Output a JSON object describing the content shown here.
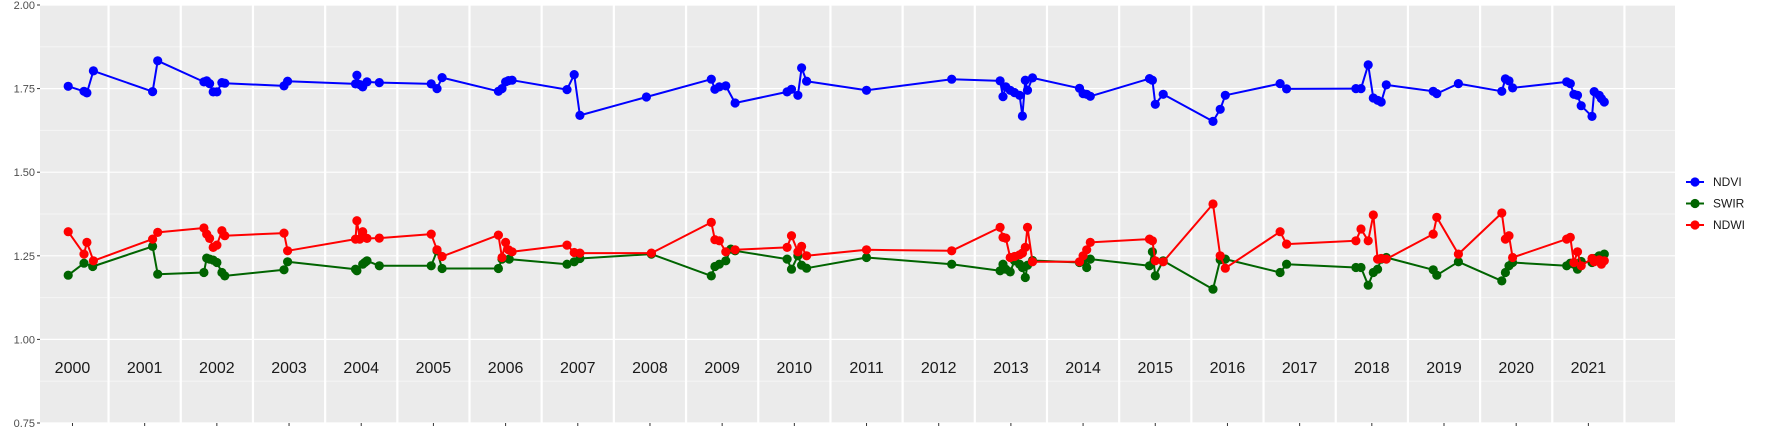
{
  "chart_data": {
    "type": "line",
    "title": "",
    "xlabel": "",
    "ylabel": "",
    "ylim": [
      0.75,
      2.0
    ],
    "yticks": [
      "0.75",
      "1.00",
      "1.25",
      "1.50",
      "1.75",
      "2.00"
    ],
    "ytick_values": [
      0.75,
      1.0,
      1.25,
      1.5,
      1.75,
      2.0
    ],
    "xlim": [
      1999.55,
      2022.2
    ],
    "years": [
      "2000",
      "2001",
      "2002",
      "2003",
      "2004",
      "2005",
      "2006",
      "2007",
      "2008",
      "2009",
      "2010",
      "2011",
      "2012",
      "2013",
      "2014",
      "2015",
      "2016",
      "2017",
      "2018",
      "2019",
      "2020",
      "2021"
    ],
    "grid": true,
    "legend_position": "right",
    "series": [
      {
        "name": "NDVI",
        "color": "#0000ff",
        "x": [
          1999.94,
          2000.16,
          2000.2,
          2000.29,
          2001.11,
          2001.18,
          2001.82,
          2001.86,
          2001.9,
          2001.95,
          2002.0,
          2002.07,
          2002.11,
          2002.93,
          2002.98,
          2003.92,
          2003.94,
          2003.98,
          2004.02,
          2004.08,
          2004.25,
          2004.97,
          2005.05,
          2005.12,
          2005.9,
          2005.95,
          2006.0,
          2006.04,
          2006.09,
          2006.85,
          2006.95,
          2007.03,
          2007.95,
          2008.85,
          2008.9,
          2008.96,
          2009.05,
          2009.18,
          2009.9,
          2009.96,
          2010.05,
          2010.1,
          2010.17,
          2011.0,
          2012.18,
          2012.85,
          2012.89,
          2012.93,
          2012.99,
          2013.05,
          2013.12,
          2013.16,
          2013.2,
          2013.23,
          2013.3,
          2013.95,
          2014.0,
          2014.05,
          2014.1,
          2014.92,
          2014.96,
          2015.0,
          2015.11,
          2015.8,
          2015.9,
          2015.97,
          2016.73,
          2016.82,
          2017.78,
          2017.85,
          2017.95,
          2018.02,
          2018.08,
          2018.13,
          2018.2,
          2018.85,
          2018.9,
          2019.2,
          2019.8,
          2019.85,
          2019.9,
          2019.95,
          2020.7,
          2020.75,
          2020.8,
          2020.85,
          2020.9,
          2021.05,
          2021.08,
          2021.15,
          2021.18,
          2021.22
        ],
        "y": [
          1.757,
          1.742,
          1.737,
          1.803,
          1.741,
          1.833,
          1.77,
          1.773,
          1.765,
          1.74,
          1.74,
          1.768,
          1.766,
          1.758,
          1.772,
          1.764,
          1.79,
          1.762,
          1.755,
          1.77,
          1.768,
          1.764,
          1.75,
          1.783,
          1.742,
          1.75,
          1.77,
          1.774,
          1.775,
          1.747,
          1.792,
          1.67,
          1.725,
          1.778,
          1.748,
          1.755,
          1.758,
          1.707,
          1.74,
          1.748,
          1.73,
          1.812,
          1.772,
          1.745,
          1.778,
          1.773,
          1.726,
          1.755,
          1.745,
          1.738,
          1.73,
          1.668,
          1.775,
          1.745,
          1.782,
          1.751,
          1.735,
          1.733,
          1.727,
          1.78,
          1.775,
          1.703,
          1.733,
          1.652,
          1.688,
          1.73,
          1.765,
          1.749,
          1.75,
          1.75,
          1.821,
          1.722,
          1.715,
          1.71,
          1.761,
          1.742,
          1.735,
          1.765,
          1.742,
          1.779,
          1.773,
          1.752,
          1.77,
          1.765,
          1.733,
          1.73,
          1.699,
          1.667,
          1.741,
          1.73,
          1.72,
          1.71
        ],
        "visible": true
      },
      {
        "name": "SWIR",
        "color": "#006400",
        "x": [
          1999.94,
          2000.16,
          2000.28,
          2001.11,
          2001.18,
          2001.82,
          2001.86,
          2001.9,
          2001.95,
          2002.0,
          2002.07,
          2002.11,
          2002.93,
          2002.98,
          2003.92,
          2003.94,
          2004.02,
          2004.05,
          2004.08,
          2004.25,
          2004.97,
          2005.05,
          2005.12,
          2005.9,
          2005.95,
          2006.05,
          2006.85,
          2006.95,
          2007.03,
          2008.02,
          2008.85,
          2008.9,
          2008.96,
          2009.05,
          2009.12,
          2009.18,
          2009.9,
          2009.96,
          2010.05,
          2010.1,
          2010.17,
          2011.0,
          2012.18,
          2012.85,
          2012.89,
          2012.93,
          2012.99,
          2013.05,
          2013.12,
          2013.16,
          2013.2,
          2013.23,
          2013.3,
          2013.95,
          2014.0,
          2014.05,
          2014.1,
          2014.92,
          2014.96,
          2015.0,
          2015.11,
          2015.8,
          2015.9,
          2015.97,
          2016.73,
          2016.82,
          2017.78,
          2017.85,
          2017.95,
          2018.02,
          2018.08,
          2018.13,
          2018.2,
          2018.85,
          2018.9,
          2019.2,
          2019.8,
          2019.85,
          2019.9,
          2019.95,
          2020.7,
          2020.75,
          2020.8,
          2020.85,
          2020.9,
          2021.05,
          2021.08,
          2021.15,
          2021.18,
          2021.22
        ],
        "y": [
          1.192,
          1.228,
          1.218,
          1.278,
          1.195,
          1.2,
          1.243,
          1.24,
          1.237,
          1.23,
          1.2,
          1.19,
          1.208,
          1.232,
          1.21,
          1.205,
          1.225,
          1.23,
          1.235,
          1.22,
          1.22,
          1.265,
          1.212,
          1.212,
          1.24,
          1.24,
          1.225,
          1.232,
          1.242,
          1.255,
          1.19,
          1.218,
          1.225,
          1.235,
          1.27,
          1.265,
          1.24,
          1.21,
          1.25,
          1.222,
          1.213,
          1.245,
          1.225,
          1.205,
          1.225,
          1.21,
          1.202,
          1.235,
          1.225,
          1.215,
          1.185,
          1.222,
          1.236,
          1.23,
          1.235,
          1.215,
          1.24,
          1.22,
          1.262,
          1.19,
          1.235,
          1.15,
          1.238,
          1.24,
          1.2,
          1.225,
          1.215,
          1.215,
          1.162,
          1.2,
          1.21,
          1.24,
          1.245,
          1.208,
          1.192,
          1.232,
          1.175,
          1.2,
          1.22,
          1.23,
          1.22,
          1.228,
          1.225,
          1.21,
          1.233,
          1.23,
          1.242,
          1.25,
          1.235,
          1.255
        ],
        "visible": true
      },
      {
        "name": "NDWI",
        "color": "#ff0000",
        "x": [
          1999.94,
          2000.16,
          2000.2,
          2000.29,
          2001.11,
          2001.18,
          2001.82,
          2001.86,
          2001.9,
          2001.95,
          2002.0,
          2002.07,
          2002.11,
          2002.93,
          2002.98,
          2003.92,
          2003.94,
          2003.98,
          2004.02,
          2004.08,
          2004.25,
          2004.97,
          2005.05,
          2005.12,
          2005.9,
          2005.95,
          2006.0,
          2006.04,
          2006.09,
          2006.85,
          2006.95,
          2007.03,
          2008.02,
          2008.85,
          2008.9,
          2008.96,
          2009.05,
          2009.18,
          2009.9,
          2009.96,
          2010.05,
          2010.1,
          2010.17,
          2011.0,
          2012.18,
          2012.85,
          2012.89,
          2012.93,
          2012.99,
          2013.05,
          2013.12,
          2013.16,
          2013.2,
          2013.23,
          2013.3,
          2013.95,
          2014.0,
          2014.05,
          2014.1,
          2014.92,
          2014.96,
          2015.0,
          2015.11,
          2015.8,
          2015.9,
          2015.97,
          2016.73,
          2016.82,
          2017.78,
          2017.85,
          2017.95,
          2018.02,
          2018.08,
          2018.13,
          2018.2,
          2018.85,
          2018.9,
          2019.2,
          2019.8,
          2019.85,
          2019.9,
          2019.95,
          2020.7,
          2020.75,
          2020.8,
          2020.85,
          2020.9,
          2021.05,
          2021.08,
          2021.15,
          2021.18,
          2021.22
        ],
        "y": [
          1.322,
          1.255,
          1.29,
          1.235,
          1.3,
          1.32,
          1.333,
          1.315,
          1.302,
          1.275,
          1.282,
          1.325,
          1.31,
          1.318,
          1.265,
          1.3,
          1.355,
          1.3,
          1.322,
          1.302,
          1.303,
          1.315,
          1.268,
          1.248,
          1.312,
          1.245,
          1.29,
          1.268,
          1.262,
          1.282,
          1.26,
          1.258,
          1.258,
          1.35,
          1.298,
          1.295,
          1.262,
          1.268,
          1.275,
          1.31,
          1.262,
          1.278,
          1.25,
          1.268,
          1.265,
          1.335,
          1.305,
          1.303,
          1.245,
          1.248,
          1.253,
          1.258,
          1.275,
          1.335,
          1.232,
          1.232,
          1.25,
          1.268,
          1.29,
          1.3,
          1.295,
          1.235,
          1.232,
          1.405,
          1.25,
          1.213,
          1.322,
          1.285,
          1.295,
          1.33,
          1.295,
          1.372,
          1.24,
          1.242,
          1.24,
          1.315,
          1.365,
          1.255,
          1.378,
          1.3,
          1.31,
          1.245,
          1.3,
          1.305,
          1.23,
          1.262,
          1.22,
          1.242,
          1.232,
          1.238,
          1.225,
          1.235
        ],
        "visible": true
      }
    ]
  }
}
